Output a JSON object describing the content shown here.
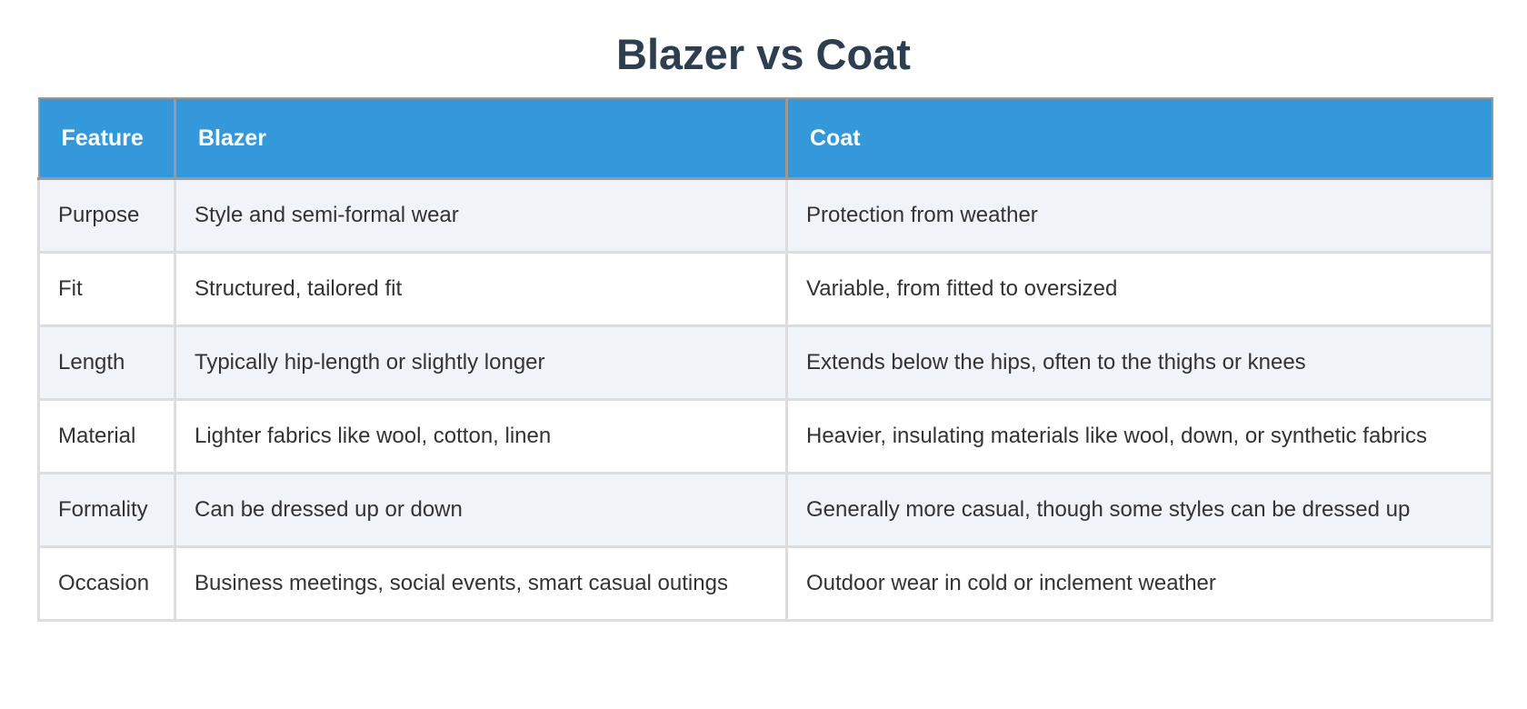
{
  "title": "Blazer vs Coat",
  "table": {
    "header": [
      "Feature",
      "Blazer",
      "Coat"
    ],
    "rows": [
      [
        "Purpose",
        "Style and semi-formal wear",
        "Protection from weather"
      ],
      [
        "Fit",
        "Structured, tailored fit",
        "Variable, from fitted to oversized"
      ],
      [
        "Length",
        "Typically hip-length or slightly longer",
        "Extends below the hips, often to the thighs or knees"
      ],
      [
        "Material",
        "Lighter fabrics like wool, cotton, linen",
        "Heavier, insulating materials like wool, down, or synthetic fabrics"
      ],
      [
        "Formality",
        "Can be dressed up or down",
        "Generally more casual, though some styles can be dressed up"
      ],
      [
        "Occasion",
        "Business meetings, social events, smart casual outings",
        "Outdoor wear in cold or inclement weather"
      ]
    ]
  }
}
